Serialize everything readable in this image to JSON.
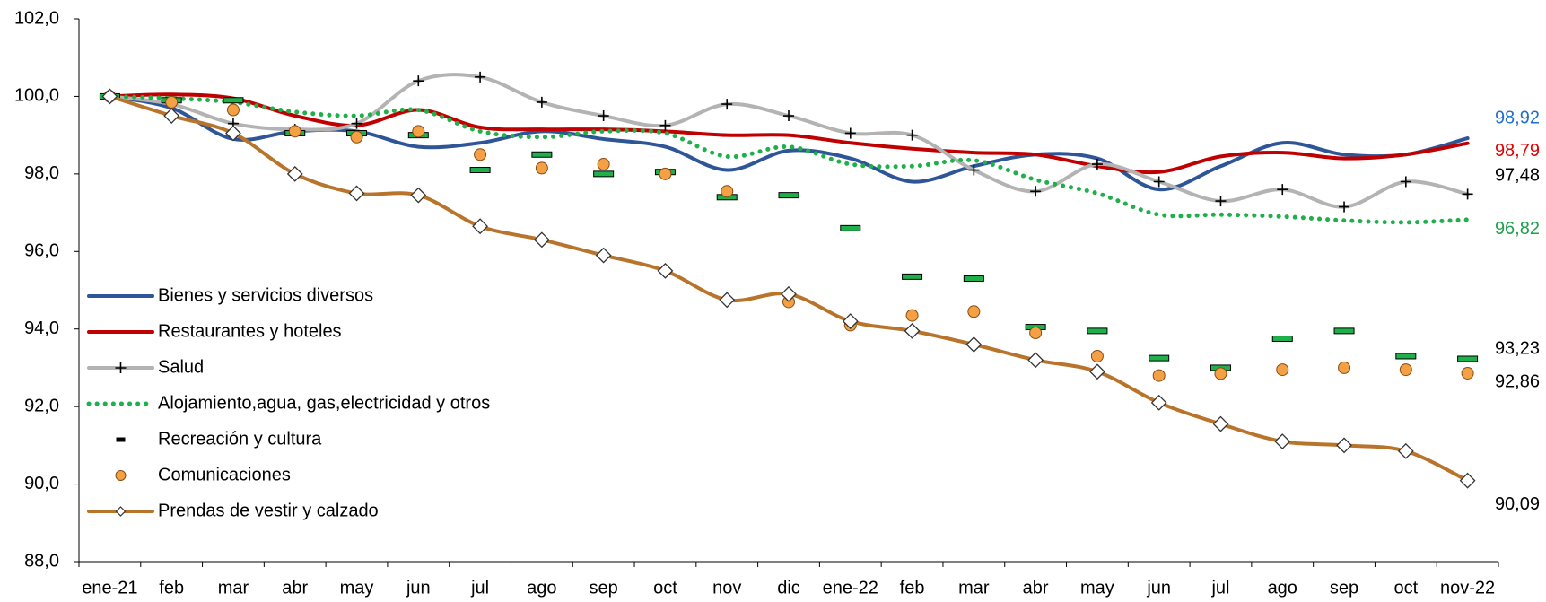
{
  "chart_data": {
    "type": "line",
    "categories": [
      "ene-21",
      "feb",
      "mar",
      "abr",
      "may",
      "jun",
      "jul",
      "ago",
      "sep",
      "oct",
      "nov",
      "dic",
      "ene-22",
      "feb",
      "mar",
      "abr",
      "may",
      "jun",
      "jul",
      "ago",
      "sep",
      "oct",
      "nov-22"
    ],
    "ylim": [
      88,
      102
    ],
    "yticks": [
      {
        "value": 88,
        "label": "88,0"
      },
      {
        "value": 90,
        "label": "90,0"
      },
      {
        "value": 92,
        "label": "92,0"
      },
      {
        "value": 94,
        "label": "94,0"
      },
      {
        "value": 96,
        "label": "96,0"
      },
      {
        "value": 98,
        "label": "98,0"
      },
      {
        "value": 100,
        "label": "100,0"
      },
      {
        "value": 102,
        "label": "102,0"
      }
    ],
    "legend": "left",
    "series": [
      {
        "name": "Bienes y servicios diversos",
        "color": "#2e5597",
        "line": "solid",
        "marker": "none",
        "label_color": "#1f6fd0",
        "values": [
          100,
          99.7,
          98.9,
          99.1,
          99.1,
          98.7,
          98.8,
          99.1,
          98.9,
          98.7,
          98.1,
          98.6,
          98.4,
          97.8,
          98.2,
          98.5,
          98.4,
          97.6,
          98.2,
          98.8,
          98.5,
          98.5,
          98.92
        ],
        "value_labels": [
          null,
          null,
          null,
          null,
          null,
          null,
          null,
          null,
          null,
          null,
          null,
          null,
          null,
          null,
          null,
          null,
          null,
          null,
          null,
          null,
          null,
          null,
          "98,92"
        ]
      },
      {
        "name": "Restaurantes y hoteles",
        "color": "#c00000",
        "line": "solid",
        "marker": "none",
        "label_color": "#e00000",
        "values": [
          100,
          100.05,
          99.95,
          99.5,
          99.25,
          99.65,
          99.2,
          99.15,
          99.15,
          99.1,
          99.0,
          99.0,
          98.8,
          98.65,
          98.55,
          98.5,
          98.2,
          98.05,
          98.45,
          98.55,
          98.4,
          98.5,
          98.79
        ],
        "value_labels": [
          null,
          null,
          null,
          null,
          null,
          null,
          null,
          null,
          null,
          null,
          null,
          null,
          null,
          null,
          null,
          null,
          null,
          null,
          null,
          null,
          null,
          null,
          "98,79"
        ]
      },
      {
        "name": "Salud",
        "color": "#b3b3b3",
        "line": "solid",
        "marker": "plus",
        "label_color": "#000000",
        "values": [
          100,
          99.8,
          99.3,
          99.15,
          99.3,
          100.4,
          100.5,
          99.85,
          99.5,
          99.25,
          99.8,
          99.5,
          99.05,
          99.0,
          98.1,
          97.55,
          98.25,
          97.8,
          97.3,
          97.6,
          97.15,
          97.8,
          97.48
        ],
        "value_labels": [
          null,
          null,
          null,
          null,
          null,
          null,
          null,
          null,
          null,
          null,
          null,
          null,
          null,
          null,
          null,
          null,
          null,
          null,
          null,
          null,
          null,
          null,
          "97,48"
        ]
      },
      {
        "name": "Alojamiento,agua, gas,electricidad y otros",
        "color": "#1fb04b",
        "line": "dotted",
        "marker": "none",
        "label_color": "#1fa04b",
        "values": [
          100,
          99.95,
          99.85,
          99.6,
          99.5,
          99.65,
          99.1,
          98.95,
          99.1,
          99.05,
          98.45,
          98.7,
          98.25,
          98.2,
          98.35,
          97.85,
          97.5,
          96.95,
          96.95,
          96.9,
          96.8,
          96.75,
          96.82
        ],
        "value_labels": [
          null,
          null,
          null,
          null,
          null,
          null,
          null,
          null,
          null,
          null,
          null,
          null,
          null,
          null,
          null,
          null,
          null,
          null,
          null,
          null,
          null,
          null,
          "96,82"
        ]
      },
      {
        "name": "Recreación y cultura",
        "color": "#1fb04b",
        "line": "none",
        "marker": "dash",
        "label_color": "#000000",
        "values": [
          100,
          99.9,
          99.9,
          99.05,
          99.05,
          99.0,
          98.1,
          98.5,
          98.0,
          98.05,
          97.4,
          97.45,
          96.6,
          95.35,
          95.3,
          94.05,
          93.95,
          93.25,
          93.0,
          93.75,
          93.95,
          93.3,
          93.23
        ],
        "value_labels": [
          null,
          null,
          null,
          null,
          null,
          null,
          null,
          null,
          null,
          null,
          null,
          null,
          null,
          null,
          null,
          null,
          null,
          null,
          null,
          null,
          null,
          null,
          "93,23"
        ]
      },
      {
        "name": "Comunicaciones",
        "color": "#f4a045",
        "line": "none",
        "marker": "circle",
        "label_color": "#000000",
        "values": [
          100,
          99.85,
          99.65,
          99.1,
          98.95,
          99.1,
          98.5,
          98.15,
          98.25,
          98.0,
          97.55,
          94.7,
          94.1,
          94.35,
          94.45,
          93.9,
          93.3,
          92.8,
          92.85,
          92.95,
          93.0,
          92.95,
          92.86
        ],
        "value_labels": [
          null,
          null,
          null,
          null,
          null,
          null,
          null,
          null,
          null,
          null,
          null,
          null,
          null,
          null,
          null,
          null,
          null,
          null,
          null,
          null,
          null,
          null,
          "92,86"
        ]
      },
      {
        "name": "Prendas de vestir y calzado",
        "color": "#b8742a",
        "line": "solid",
        "marker": "diamond",
        "label_color": "#000000",
        "values": [
          100,
          99.5,
          99.05,
          98.0,
          97.5,
          97.45,
          96.65,
          96.3,
          95.9,
          95.5,
          94.75,
          94.9,
          94.2,
          93.95,
          93.6,
          93.2,
          92.9,
          92.1,
          91.55,
          91.1,
          91.0,
          90.85,
          90.09
        ],
        "value_labels": [
          null,
          null,
          null,
          null,
          null,
          null,
          null,
          null,
          null,
          null,
          null,
          null,
          null,
          null,
          null,
          null,
          null,
          null,
          null,
          null,
          null,
          null,
          "90,09"
        ]
      }
    ]
  }
}
